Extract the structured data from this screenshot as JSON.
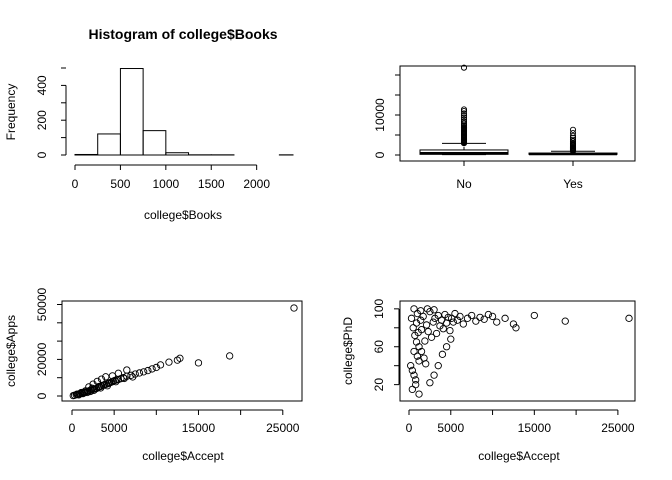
{
  "chart_data": [
    {
      "type": "bar",
      "subtype": "histogram",
      "title": "Histogram of college$Books",
      "xlabel": "college$Books",
      "ylabel": "Frequency",
      "bins": [
        {
          "start": 0,
          "end": 250,
          "count": 3
        },
        {
          "start": 250,
          "end": 500,
          "count": 121
        },
        {
          "start": 500,
          "end": 750,
          "count": 497
        },
        {
          "start": 750,
          "end": 1000,
          "count": 140
        },
        {
          "start": 1000,
          "end": 1250,
          "count": 13
        },
        {
          "start": 1250,
          "end": 1500,
          "count": 1
        },
        {
          "start": 1500,
          "end": 1750,
          "count": 1
        },
        {
          "start": 1750,
          "end": 2000,
          "count": 0
        },
        {
          "start": 2000,
          "end": 2250,
          "count": 0
        },
        {
          "start": 2250,
          "end": 2500,
          "count": 1
        }
      ],
      "xticks": [
        0,
        500,
        1000,
        1500,
        2000
      ],
      "yticks": [
        0,
        200,
        400
      ],
      "xlim": [
        0,
        2400
      ],
      "ylim": [
        0,
        500
      ],
      "grid": false
    },
    {
      "type": "box",
      "title": "",
      "xlabel": "",
      "ylabel": "",
      "categories": [
        "No",
        "Yes"
      ],
      "boxes": [
        {
          "name": "No",
          "min": 81,
          "q1": 167,
          "median": 434,
          "q3": 1262,
          "max": 2900,
          "outliers": [
            2950,
            3000,
            3100,
            3200,
            3300,
            3400,
            3500,
            3600,
            3700,
            3800,
            3900,
            4000,
            4200,
            4400,
            4600,
            4800,
            5000,
            5200,
            5400,
            5600,
            5800,
            6000,
            6200,
            6400,
            6600,
            6800,
            7000,
            7300,
            7600,
            8000,
            8400,
            8900,
            9400,
            9900,
            10400,
            11000,
            11400,
            21836
          ]
        },
        {
          "name": "Yes",
          "min": 139,
          "q1": 170,
          "median": 250,
          "q3": 482,
          "max": 950,
          "outliers": [
            1000,
            1100,
            1200,
            1300,
            1400,
            1500,
            1600,
            1700,
            1800,
            1900,
            2000,
            2200,
            2400,
            2600,
            2800,
            3000,
            3400,
            3800,
            4300,
            4800,
            5500,
            6300
          ]
        }
      ],
      "yticks": [
        0,
        10000
      ],
      "ylim": [
        0,
        22000
      ],
      "grid": false
    },
    {
      "type": "scatter",
      "title": "",
      "xlabel": "college$Accept",
      "ylabel": "college$Apps",
      "xticks": [
        0,
        5000,
        15000,
        25000
      ],
      "yticks": [
        0,
        20000,
        50000
      ],
      "xlim": [
        0,
        26330
      ],
      "ylim": [
        0,
        48094
      ],
      "points": [
        [
          300,
          400
        ],
        [
          500,
          700
        ],
        [
          700,
          900
        ],
        [
          900,
          1200
        ],
        [
          1000,
          1400
        ],
        [
          1200,
          1600
        ],
        [
          1400,
          1800
        ],
        [
          1500,
          2100
        ],
        [
          1700,
          2300
        ],
        [
          1900,
          2600
        ],
        [
          2100,
          3000
        ],
        [
          2300,
          3200
        ],
        [
          2500,
          3600
        ],
        [
          2700,
          3900
        ],
        [
          2900,
          4100
        ],
        [
          3100,
          4600
        ],
        [
          3300,
          5100
        ],
        [
          3500,
          5400
        ],
        [
          3700,
          5800
        ],
        [
          3900,
          6200
        ],
        [
          4100,
          6500
        ],
        [
          4300,
          6900
        ],
        [
          4500,
          7300
        ],
        [
          4700,
          7600
        ],
        [
          4900,
          8100
        ],
        [
          5100,
          8500
        ],
        [
          5300,
          8800
        ],
        [
          5500,
          9000
        ],
        [
          5800,
          9500
        ],
        [
          6100,
          10000
        ],
        [
          6500,
          10800
        ],
        [
          7000,
          11300
        ],
        [
          7500,
          12000
        ],
        [
          8000,
          12600
        ],
        [
          8500,
          13200
        ],
        [
          9000,
          13900
        ],
        [
          9500,
          14800
        ],
        [
          10000,
          15600
        ],
        [
          10500,
          17000
        ],
        [
          11500,
          18500
        ],
        [
          12500,
          19600
        ],
        [
          12800,
          20600
        ],
        [
          15000,
          18100
        ],
        [
          18700,
          21900
        ],
        [
          26330,
          48094
        ],
        [
          2000,
          5000
        ],
        [
          2500,
          6500
        ],
        [
          3000,
          8000
        ],
        [
          3500,
          9200
        ],
        [
          4000,
          10500
        ],
        [
          4800,
          11000
        ],
        [
          5500,
          12400
        ],
        [
          6500,
          14200
        ],
        [
          800,
          600
        ],
        [
          1300,
          1300
        ],
        [
          1800,
          1900
        ],
        [
          2200,
          2500
        ],
        [
          2600,
          3100
        ],
        [
          3400,
          4400
        ],
        [
          4200,
          5600
        ],
        [
          150,
          200
        ],
        [
          600,
          1000
        ],
        [
          1100,
          1900
        ],
        [
          1600,
          2800
        ],
        [
          2400,
          4200
        ],
        [
          3200,
          5200
        ],
        [
          4400,
          7000
        ],
        [
          5200,
          7800
        ],
        [
          6200,
          9600
        ],
        [
          7200,
          10400
        ]
      ],
      "grid": false
    },
    {
      "type": "scatter",
      "title": "",
      "xlabel": "college$Accept",
      "ylabel": "college$PhD",
      "xticks": [
        0,
        5000,
        15000,
        25000
      ],
      "yticks": [
        20,
        60,
        100
      ],
      "xlim": [
        0,
        26330
      ],
      "ylim": [
        8,
        103
      ],
      "points": [
        [
          300,
          90
        ],
        [
          500,
          80
        ],
        [
          700,
          72
        ],
        [
          900,
          85
        ],
        [
          1000,
          95
        ],
        [
          1200,
          60
        ],
        [
          1400,
          88
        ],
        [
          1500,
          78
        ],
        [
          1700,
          92
        ],
        [
          1900,
          66
        ],
        [
          2100,
          83
        ],
        [
          2300,
          76
        ],
        [
          2500,
          97
        ],
        [
          2700,
          70
        ],
        [
          2900,
          86
        ],
        [
          3100,
          90
        ],
        [
          3300,
          74
        ],
        [
          3500,
          93
        ],
        [
          3700,
          82
        ],
        [
          3900,
          88
        ],
        [
          4100,
          79
        ],
        [
          4300,
          94
        ],
        [
          4500,
          85
        ],
        [
          4700,
          91
        ],
        [
          4900,
          77
        ],
        [
          5100,
          90
        ],
        [
          5300,
          86
        ],
        [
          5500,
          95
        ],
        [
          5800,
          88
        ],
        [
          6100,
          92
        ],
        [
          6500,
          84
        ],
        [
          7000,
          90
        ],
        [
          7500,
          93
        ],
        [
          8000,
          87
        ],
        [
          8500,
          91
        ],
        [
          9000,
          89
        ],
        [
          9500,
          94
        ],
        [
          10000,
          92
        ],
        [
          10500,
          86
        ],
        [
          11500,
          90
        ],
        [
          12500,
          84
        ],
        [
          12800,
          80
        ],
        [
          15000,
          93
        ],
        [
          18700,
          87
        ],
        [
          26330,
          90
        ],
        [
          200,
          40
        ],
        [
          400,
          35
        ],
        [
          600,
          30
        ],
        [
          800,
          25
        ],
        [
          1000,
          50
        ],
        [
          1200,
          45
        ],
        [
          1500,
          55
        ],
        [
          1800,
          48
        ],
        [
          2000,
          42
        ],
        [
          400,
          15
        ],
        [
          800,
          20
        ],
        [
          1200,
          10
        ],
        [
          600,
          55
        ],
        [
          900,
          65
        ],
        [
          1100,
          75
        ],
        [
          2500,
          22
        ],
        [
          3000,
          30
        ],
        [
          3500,
          40
        ],
        [
          4000,
          52
        ],
        [
          4500,
          60
        ],
        [
          5000,
          68
        ],
        [
          600,
          100
        ],
        [
          1400,
          98
        ],
        [
          2200,
          100
        ],
        [
          3000,
          99
        ]
      ],
      "grid": false
    }
  ]
}
